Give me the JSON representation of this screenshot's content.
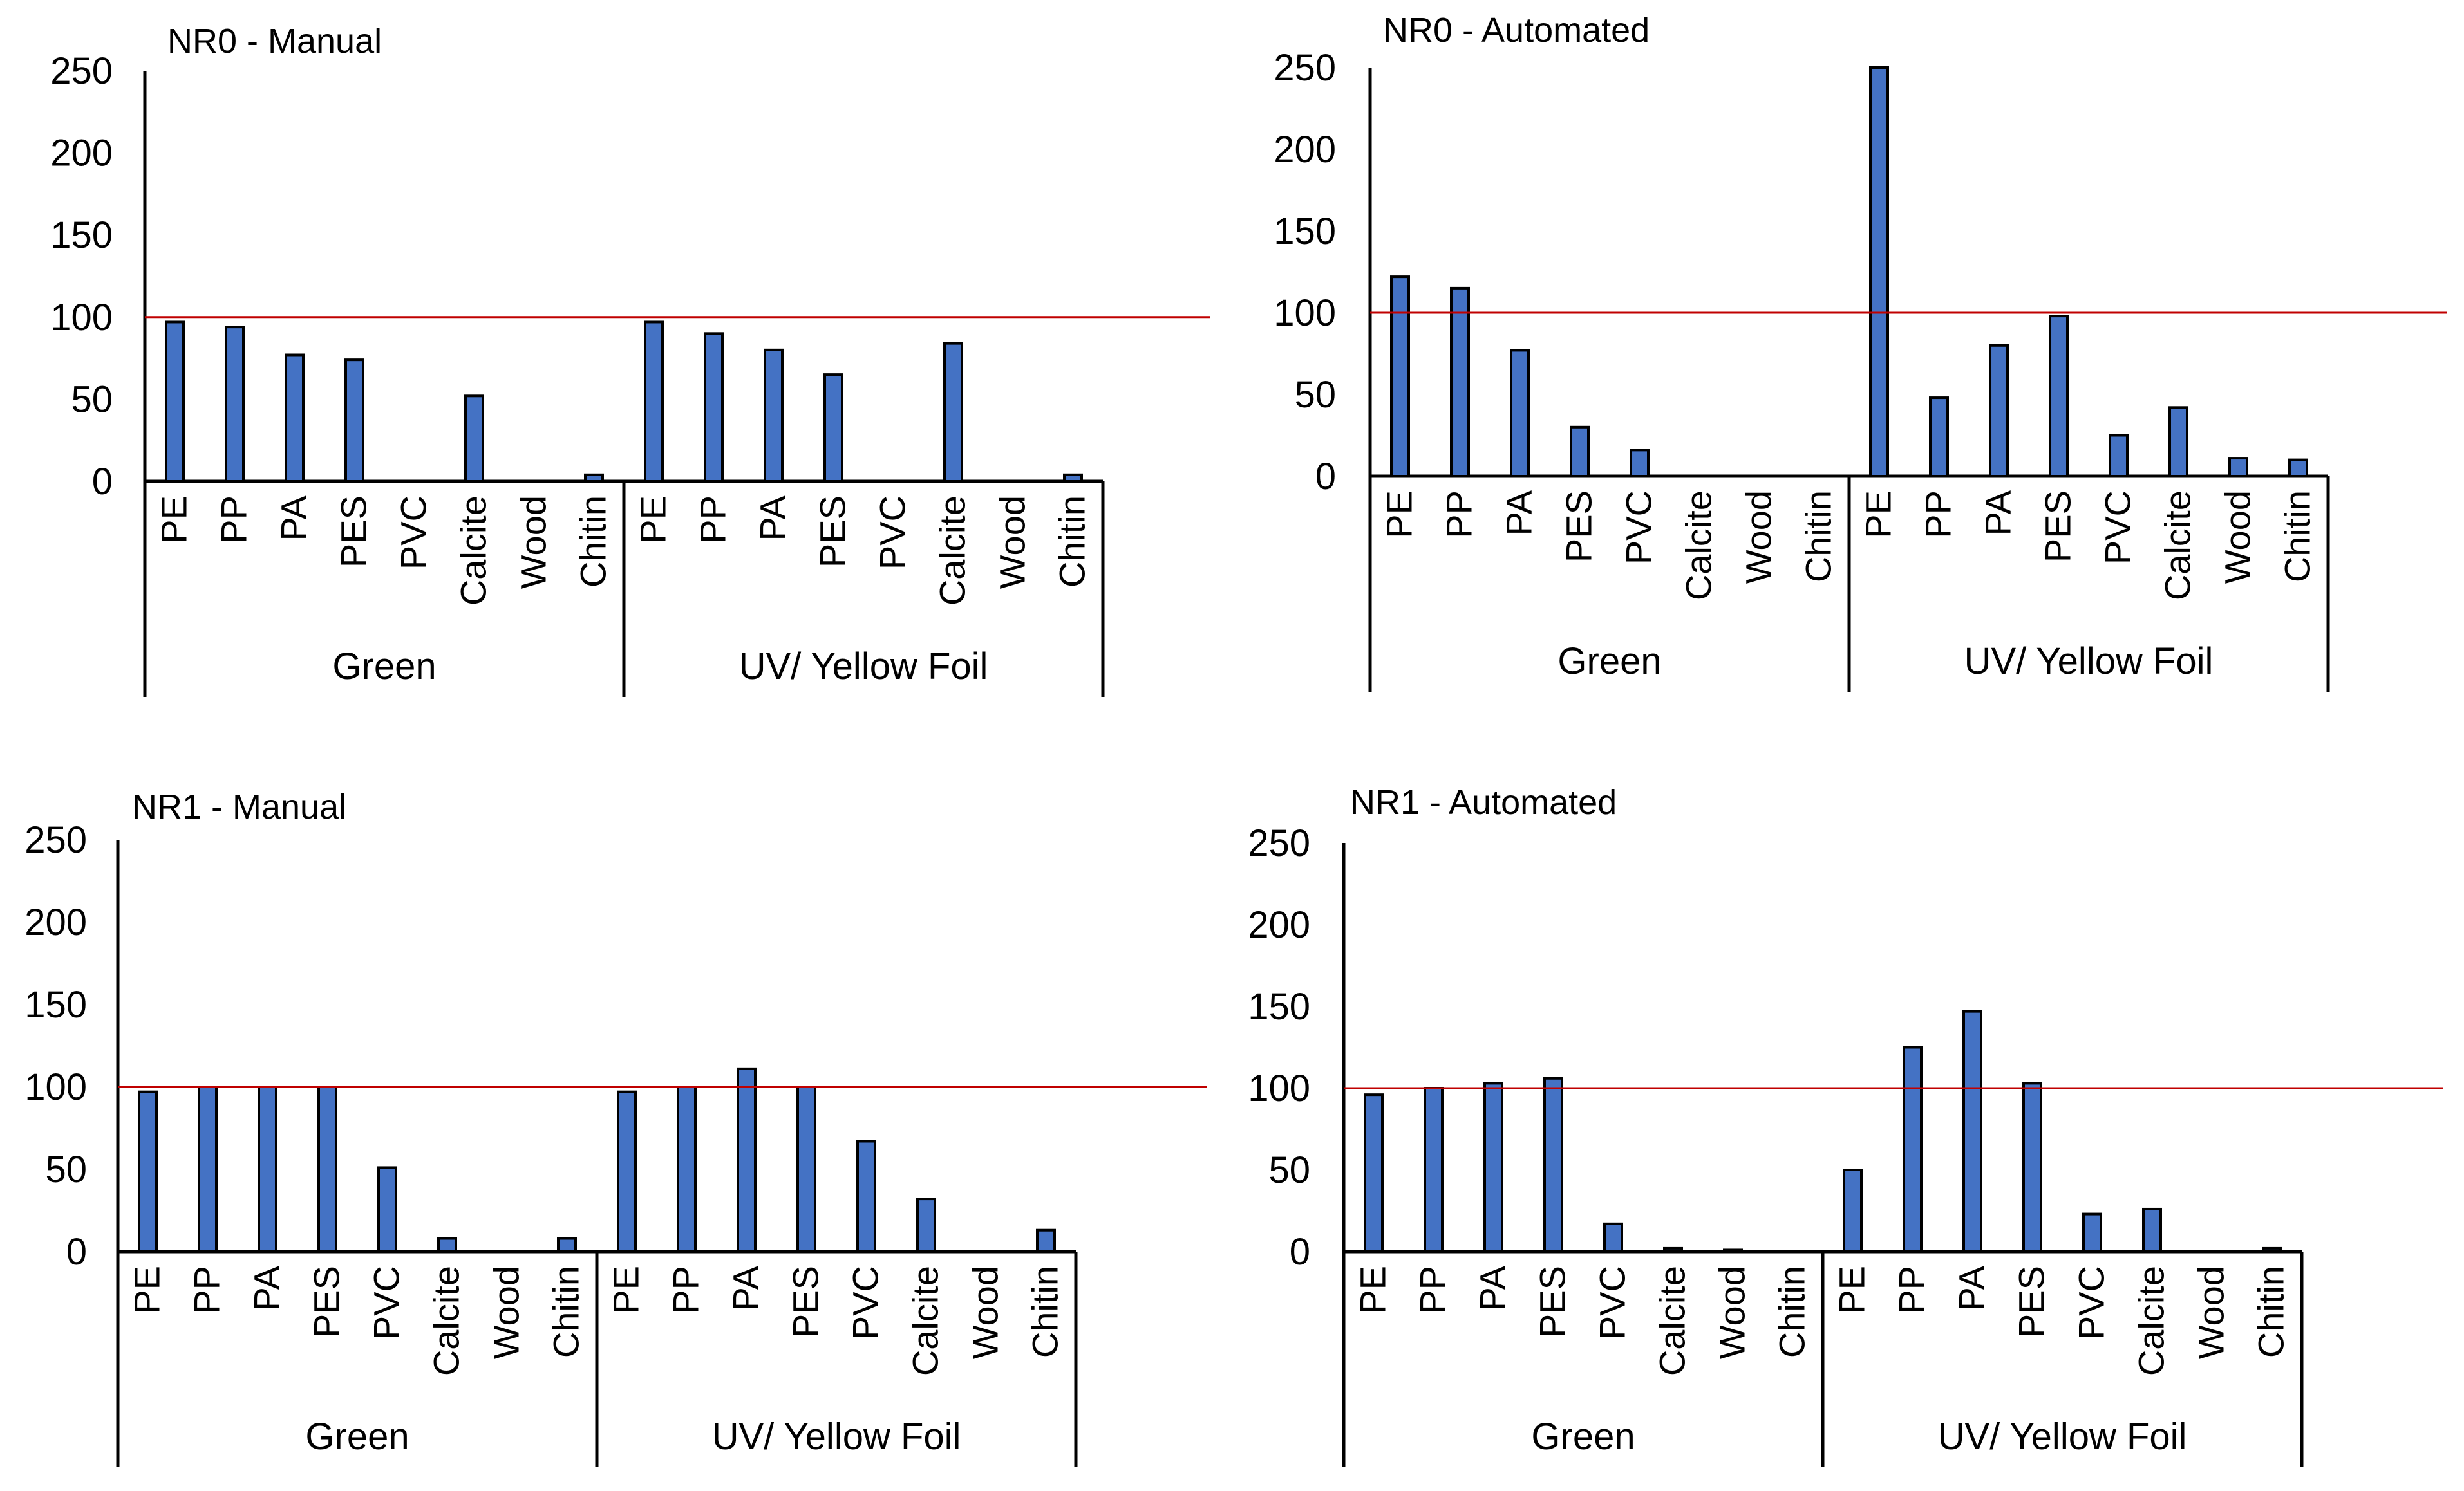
{
  "chart_data": [
    {
      "type": "bar",
      "title": "NR0  - Manual",
      "xlabel": "",
      "ylabel": "",
      "ylim": [
        0,
        250
      ],
      "yticks": [
        0,
        50,
        100,
        150,
        200,
        250
      ],
      "reference_line": 100,
      "groups": [
        "Green",
        "UV/ Yellow Foil"
      ],
      "categories": [
        "PE",
        "PP",
        "PA",
        "PES",
        "PVC",
        "Calcite",
        "Wood",
        "Chitin"
      ],
      "series": [
        {
          "name": "Green",
          "values": [
            97,
            94,
            77,
            74,
            0,
            52,
            0,
            4
          ]
        },
        {
          "name": "UV/ Yellow Foil",
          "values": [
            97,
            90,
            80,
            65,
            0,
            84,
            0,
            4
          ]
        }
      ]
    },
    {
      "type": "bar",
      "title": "NR0  - Automated",
      "xlabel": "",
      "ylabel": "",
      "ylim": [
        0,
        250
      ],
      "yticks": [
        0,
        50,
        100,
        150,
        200,
        250
      ],
      "reference_line": 100,
      "groups": [
        "Green",
        "UV/ Yellow Foil"
      ],
      "categories": [
        "PE",
        "PP",
        "PA",
        "PES",
        "PVC",
        "Calcite",
        "Wood",
        "Chitin"
      ],
      "series": [
        {
          "name": "Green",
          "values": [
            122,
            115,
            77,
            30,
            16,
            0,
            0,
            0
          ]
        },
        {
          "name": "UV/ Yellow Foil",
          "values": [
            250,
            48,
            80,
            98,
            25,
            42,
            11,
            10
          ]
        }
      ]
    },
    {
      "type": "bar",
      "title": "NR1  - Manual",
      "xlabel": "",
      "ylabel": "",
      "ylim": [
        0,
        250
      ],
      "yticks": [
        0,
        50,
        100,
        150,
        200,
        250
      ],
      "reference_line": 100,
      "groups": [
        "Green",
        "UV/ Yellow Foil"
      ],
      "categories": [
        "PE",
        "PP",
        "PA",
        "PES",
        "PVC",
        "Calcite",
        "Wood",
        "Chitin"
      ],
      "series": [
        {
          "name": "Green",
          "values": [
            97,
            100,
            100,
            100,
            51,
            8,
            0,
            8
          ]
        },
        {
          "name": "UV/ Yellow Foil",
          "values": [
            97,
            100,
            111,
            100,
            67,
            32,
            0,
            13
          ]
        }
      ]
    },
    {
      "type": "bar",
      "title": "NR1  - Automated",
      "xlabel": "",
      "ylabel": "",
      "ylim": [
        0,
        250
      ],
      "yticks": [
        0,
        50,
        100,
        150,
        200,
        250
      ],
      "reference_line": 100,
      "groups": [
        "Green",
        "UV/ Yellow Foil"
      ],
      "categories": [
        "PE",
        "PP",
        "PA",
        "PES",
        "PVC",
        "Calcite",
        "Wood",
        "Chitin"
      ],
      "series": [
        {
          "name": "Green",
          "values": [
            96,
            100,
            103,
            106,
            17,
            2,
            1,
            0
          ]
        },
        {
          "name": "UV/ Yellow Foil",
          "values": [
            50,
            125,
            147,
            103,
            23,
            26,
            0,
            2
          ]
        }
      ]
    }
  ],
  "colors": {
    "bar_fill": "#4472C4",
    "bar_stroke": "#000000",
    "reference_line": "#C00000",
    "axis": "#000000"
  }
}
